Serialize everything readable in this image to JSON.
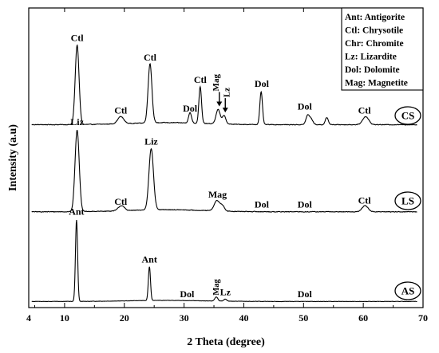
{
  "chart_data": {
    "type": "line",
    "xlabel": "2 Theta (degree)",
    "ylabel": "Intensity (a.u)",
    "xlim": [
      4,
      70
    ],
    "x_ticks": [
      "4",
      "10",
      "20",
      "30",
      "40",
      "50",
      "60",
      "70"
    ],
    "x_tick_values": [
      4,
      10,
      20,
      30,
      40,
      50,
      60,
      70
    ],
    "legend": {
      "placement": "top-right",
      "entries": [
        "Ant: Antigorite",
        "Ctl: Chrysotile",
        "Chr: Chromite",
        "Lz: Lizardite",
        "Dol: Dolomite",
        "Mag: Magnetite"
      ]
    },
    "series": [
      {
        "name": "CS",
        "baseline": 9,
        "noise": 0.5,
        "peaks": [
          {
            "x": 12.1,
            "h": 78,
            "w": 0.32
          },
          {
            "x": 19.4,
            "h": 7,
            "w": 0.5
          },
          {
            "x": 24.3,
            "h": 58,
            "w": 0.32
          },
          {
            "x": 31.0,
            "h": 10,
            "w": 0.25
          },
          {
            "x": 32.7,
            "h": 36,
            "w": 0.22
          },
          {
            "x": 35.7,
            "h": 14,
            "w": 0.35
          },
          {
            "x": 36.7,
            "h": 8,
            "w": 0.3
          },
          {
            "x": 42.9,
            "h": 32,
            "w": 0.22
          },
          {
            "x": 50.7,
            "h": 9,
            "w": 0.3
          },
          {
            "x": 51.3,
            "h": 5,
            "w": 0.3
          },
          {
            "x": 53.9,
            "h": 7,
            "w": 0.25
          },
          {
            "x": 60.4,
            "h": 8,
            "w": 0.5
          }
        ],
        "annotations": [
          {
            "text": "Ctl",
            "x": 12.1,
            "y": 91
          },
          {
            "text": "Ctl",
            "x": 19.4,
            "y": 20
          },
          {
            "text": "Ctl",
            "x": 24.3,
            "y": 72
          },
          {
            "text": "Dol",
            "x": 31.0,
            "y": 22
          },
          {
            "text": "Ctl",
            "x": 32.7,
            "y": 50
          },
          {
            "text": "Dol",
            "x": 43.0,
            "y": 46
          },
          {
            "text": "Dol",
            "x": 50.2,
            "y": 24
          },
          {
            "text": "Ctl",
            "x": 60.2,
            "y": 20
          }
        ]
      },
      {
        "name": "LS",
        "baseline": 8,
        "noise": 0.5,
        "peaks": [
          {
            "x": 12.1,
            "h": 80,
            "w": 0.35
          },
          {
            "x": 19.5,
            "h": 5,
            "w": 0.5
          },
          {
            "x": 24.5,
            "h": 60,
            "w": 0.38
          },
          {
            "x": 35.5,
            "h": 10,
            "w": 0.45
          },
          {
            "x": 36.4,
            "h": 5,
            "w": 0.35
          },
          {
            "x": 60.3,
            "h": 6,
            "w": 0.5
          }
        ],
        "annotations": [
          {
            "text": "Liz",
            "x": 12.1,
            "y": 93
          },
          {
            "text": "Ctl",
            "x": 19.4,
            "y": 15
          },
          {
            "text": "Liz",
            "x": 24.5,
            "y": 74
          },
          {
            "text": "Mag",
            "x": 35.6,
            "y": 22
          },
          {
            "text": "Dol",
            "x": 43.0,
            "y": 12
          },
          {
            "text": "Dol",
            "x": 50.2,
            "y": 12
          },
          {
            "text": "Ctl",
            "x": 60.2,
            "y": 16
          }
        ]
      },
      {
        "name": "AS",
        "baseline": 6,
        "noise": 0.25,
        "peaks": [
          {
            "x": 12.0,
            "h": 80,
            "w": 0.18
          },
          {
            "x": 24.2,
            "h": 33,
            "w": 0.18
          },
          {
            "x": 35.4,
            "h": 4,
            "w": 0.25
          },
          {
            "x": 36.9,
            "h": 2,
            "w": 0.25
          }
        ],
        "annotations": [
          {
            "text": "Ant",
            "x": 12.0,
            "y": 91
          },
          {
            "text": "Ant",
            "x": 24.2,
            "y": 44
          },
          {
            "text": "Dol",
            "x": 30.5,
            "y": 10
          },
          {
            "text": "Lz",
            "x": 36.9,
            "y": 12
          },
          {
            "text": "Dol",
            "x": 50.2,
            "y": 10
          }
        ],
        "rotated_annotations": [
          {
            "text": "Mag",
            "x": 35.4,
            "y": 12
          }
        ]
      }
    ],
    "arrow_annotations": [
      {
        "text": "Mag",
        "series": "CS",
        "x": 35.9,
        "tip_y": 27
      },
      {
        "text": "Lz",
        "series": "CS",
        "x": 36.9,
        "tip_y": 21
      }
    ]
  },
  "colors": {
    "line": "#000000",
    "axis": "#000000",
    "background": "#ffffff"
  }
}
